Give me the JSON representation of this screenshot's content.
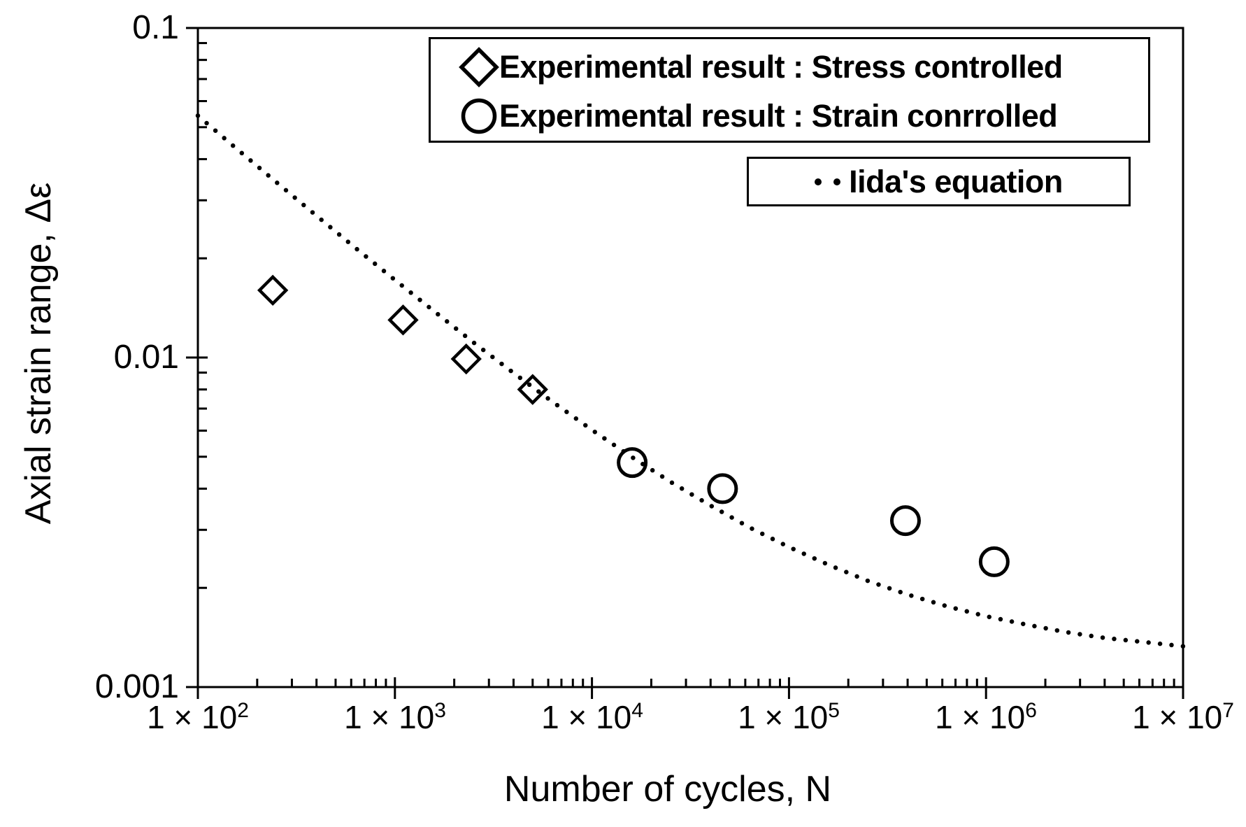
{
  "figure": {
    "background_color": "#ffffff",
    "ink_color": "#000000"
  },
  "axes": {
    "x": {
      "title": "Number of cycles, N",
      "scale": "log",
      "ticks": [
        {
          "base": "1 × 10",
          "exp": "2"
        },
        {
          "base": "1 × 10",
          "exp": "3"
        },
        {
          "base": "1 × 10",
          "exp": "4"
        },
        {
          "base": "1 × 10",
          "exp": "5"
        },
        {
          "base": "1 × 10",
          "exp": "6"
        },
        {
          "base": "1 × 10",
          "exp": "7"
        }
      ]
    },
    "y": {
      "title": "Axial strain range, Δε",
      "scale": "log",
      "ticks": [
        "0.1",
        "0.01",
        "0.001"
      ]
    }
  },
  "legend1": {
    "items": [
      {
        "marker": "diamond",
        "label": "Experimental result : Stress controlled"
      },
      {
        "marker": "circle",
        "label": "Experimental result : Strain conrrolled"
      }
    ]
  },
  "legend2": {
    "marker": "dotted-line",
    "label": "Iida's equation"
  },
  "chart_data": {
    "type": "scatter",
    "title": "",
    "xlabel": "Number of cycles, N",
    "ylabel": "Axial strain range, Δε",
    "xscale": "log",
    "yscale": "log",
    "xlim": [
      100,
      10000000
    ],
    "ylim": [
      0.001,
      0.1
    ],
    "grid": false,
    "legend_position": "top-right, boxed",
    "series": [
      {
        "name": "Experimental result : Stress controlled",
        "marker": "diamond",
        "points": [
          [
            240,
            0.016
          ],
          [
            1100,
            0.013
          ],
          [
            2300,
            0.0099
          ],
          [
            5000,
            0.008
          ]
        ]
      },
      {
        "name": "Experimental result : Strain conrrolled",
        "marker": "circle",
        "points": [
          [
            16000,
            0.0048
          ],
          [
            46000,
            0.004
          ],
          [
            390000,
            0.0032
          ],
          [
            1100000,
            0.0024
          ]
        ]
      },
      {
        "name": "Iida's equation",
        "marker": "dotted-line",
        "points": [
          [
            100,
            0.0542
          ],
          [
            158,
            0.0429
          ],
          [
            251,
            0.034
          ],
          [
            398,
            0.027
          ],
          [
            631,
            0.0215
          ],
          [
            1000,
            0.0172
          ],
          [
            1585,
            0.0138
          ],
          [
            2512,
            0.0111
          ],
          [
            3981,
            0.009
          ],
          [
            6310,
            0.00734
          ],
          [
            10000,
            0.00603
          ],
          [
            15849,
            0.005
          ],
          [
            25119,
            0.00419
          ],
          [
            39811,
            0.00356
          ],
          [
            63096,
            0.00305
          ],
          [
            100000,
            0.00266
          ],
          [
            158489,
            0.00235
          ],
          [
            251189,
            0.0021
          ],
          [
            398107,
            0.00191
          ],
          [
            630957,
            0.00176
          ],
          [
            1000000,
            0.00164
          ],
          [
            1584893,
            0.00155
          ],
          [
            2511886,
            0.00147
          ],
          [
            3981072,
            0.00141
          ],
          [
            6309573,
            0.00137
          ],
          [
            10000000,
            0.00133
          ]
        ]
      }
    ]
  }
}
